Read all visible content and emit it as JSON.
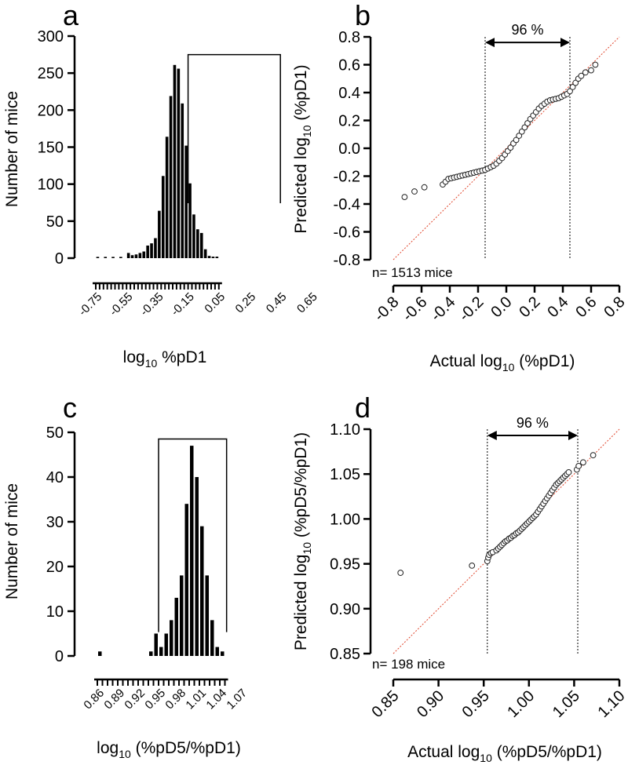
{
  "figure": {
    "colors": {
      "axis": "#000000",
      "bar": "#000000",
      "identity_line": "#e0442a",
      "point_stroke": "#222222",
      "point_fill": "#ffffff"
    }
  },
  "chart_data": [
    {
      "panel": "a",
      "type": "bar",
      "ylabel": "Number of mice",
      "xlabel_main": "log",
      "xlabel_sub": "10",
      "xlabel_rest": " %pD1",
      "ylim": [
        0,
        300
      ],
      "yticks": [
        0,
        50,
        100,
        150,
        200,
        250,
        300
      ],
      "xticks": [
        "-0.75",
        "-0.55",
        "-0.35",
        "-0.15",
        "0.05",
        "0.25",
        "0.45",
        "0.65"
      ],
      "bin_start": -0.75,
      "bin_width": 0.025,
      "values": [
        1,
        0,
        1,
        0,
        1,
        0,
        1,
        0,
        7,
        4,
        5,
        7,
        9,
        17,
        20,
        27,
        64,
        111,
        164,
        219,
        261,
        256,
        209,
        152,
        101,
        59,
        39,
        34,
        12,
        3,
        2,
        2
      ],
      "bracket": {
        "from": -0.15,
        "to": 0.45,
        "top": 275
      }
    },
    {
      "panel": "b",
      "type": "scatter",
      "ylabel_main": "Predicted log",
      "ylabel_sub": "10",
      "ylabel_rest": " (%pD1)",
      "xlabel_main": "Actual log",
      "xlabel_sub": "10",
      "xlabel_rest": " (%pD1)",
      "xlim": [
        -0.8,
        0.8
      ],
      "ylim": [
        -0.8,
        0.8
      ],
      "xticks": [
        "-0.8",
        "-0.6",
        "-0.4",
        "-0.2",
        "0.0",
        "0.2",
        "0.4",
        "0.6",
        "0.8"
      ],
      "yticks": [
        "-0.8",
        "-0.6",
        "-0.4",
        "-0.2",
        "0.0",
        "0.2",
        "0.4",
        "0.6",
        "0.8"
      ],
      "tick_step": 0.2,
      "tick_digits": 1,
      "n_label": "n= 1513 mice",
      "interval_label": "96 %",
      "interval": [
        -0.15,
        0.45
      ],
      "interval_arrow_y": 0.76,
      "points": [
        [
          -0.72,
          -0.35
        ],
        [
          -0.65,
          -0.31
        ],
        [
          -0.58,
          -0.28
        ],
        [
          -0.45,
          -0.26
        ],
        [
          -0.43,
          -0.24
        ],
        [
          -0.41,
          -0.22
        ],
        [
          -0.39,
          -0.215
        ],
        [
          -0.37,
          -0.21
        ],
        [
          -0.35,
          -0.205
        ],
        [
          -0.33,
          -0.2
        ],
        [
          -0.31,
          -0.195
        ],
        [
          -0.29,
          -0.19
        ],
        [
          -0.27,
          -0.185
        ],
        [
          -0.25,
          -0.18
        ],
        [
          -0.23,
          -0.175
        ],
        [
          -0.21,
          -0.17
        ],
        [
          -0.19,
          -0.165
        ],
        [
          -0.17,
          -0.16
        ],
        [
          -0.15,
          -0.155
        ],
        [
          -0.13,
          -0.145
        ],
        [
          -0.11,
          -0.135
        ],
        [
          -0.09,
          -0.125
        ],
        [
          -0.07,
          -0.11
        ],
        [
          -0.05,
          -0.09
        ],
        [
          -0.03,
          -0.07
        ],
        [
          -0.01,
          -0.045
        ],
        [
          0.01,
          -0.02
        ],
        [
          0.03,
          0.005
        ],
        [
          0.05,
          0.035
        ],
        [
          0.07,
          0.06
        ],
        [
          0.09,
          0.09
        ],
        [
          0.11,
          0.12
        ],
        [
          0.13,
          0.15
        ],
        [
          0.15,
          0.18
        ],
        [
          0.17,
          0.21
        ],
        [
          0.19,
          0.235
        ],
        [
          0.21,
          0.26
        ],
        [
          0.23,
          0.285
        ],
        [
          0.25,
          0.305
        ],
        [
          0.27,
          0.32
        ],
        [
          0.29,
          0.335
        ],
        [
          0.31,
          0.345
        ],
        [
          0.33,
          0.35
        ],
        [
          0.35,
          0.355
        ],
        [
          0.37,
          0.36
        ],
        [
          0.39,
          0.37
        ],
        [
          0.41,
          0.38
        ],
        [
          0.43,
          0.39
        ],
        [
          0.45,
          0.41
        ],
        [
          0.47,
          0.44
        ],
        [
          0.49,
          0.47
        ],
        [
          0.51,
          0.5
        ],
        [
          0.53,
          0.52
        ],
        [
          0.56,
          0.545
        ],
        [
          0.6,
          0.56
        ],
        [
          0.63,
          0.6
        ]
      ]
    },
    {
      "panel": "c",
      "type": "bar",
      "ylabel": "Number of mice",
      "xlabel_main": "log",
      "xlabel_sub": "10",
      "xlabel_rest": " (%pD5/%pD1)",
      "ylim": [
        0,
        50
      ],
      "yticks": [
        0,
        10,
        20,
        30,
        40,
        50
      ],
      "xticks": [
        "0.86",
        "0.89",
        "0.92",
        "0.95",
        "0.98",
        "1.01",
        "1.04",
        "1.07"
      ],
      "bin_start": 0.86,
      "bin_width": 0.0075,
      "values": [
        1,
        0,
        0,
        0,
        0,
        0,
        0,
        0,
        0,
        0,
        1,
        5,
        2,
        5,
        8,
        13,
        18,
        34,
        47,
        40,
        29,
        18,
        8,
        2,
        1
      ],
      "bracket": {
        "from": 0.95,
        "to": 1.05,
        "top": 48.5
      }
    },
    {
      "panel": "d",
      "type": "scatter",
      "ylabel_main": "Predicted log",
      "ylabel_sub": "10",
      "ylabel_rest": " (%pD5/%pD1)",
      "xlabel_main": "Actual log",
      "xlabel_sub": "10",
      "xlabel_rest": " (%pD5/%pD1)",
      "xlim": [
        0.85,
        1.1
      ],
      "ylim": [
        0.85,
        1.1
      ],
      "xticks": [
        "0.85",
        "0.90",
        "0.95",
        "1.00",
        "1.05",
        "1.10"
      ],
      "yticks": [
        "0.85",
        "0.90",
        "0.95",
        "1.00",
        "1.05",
        "1.10"
      ],
      "tick_step": 0.05,
      "tick_digits": 2,
      "n_label": "n= 198 mice",
      "interval_label": "96 %",
      "interval": [
        0.954,
        1.054
      ],
      "interval_arrow_y": 1.093,
      "points": [
        [
          0.858,
          0.94
        ],
        [
          0.937,
          0.948
        ],
        [
          0.954,
          0.953
        ],
        [
          0.955,
          0.957
        ],
        [
          0.956,
          0.96
        ],
        [
          0.958,
          0.962
        ],
        [
          0.96,
          0.963
        ],
        [
          0.964,
          0.965
        ],
        [
          0.966,
          0.967
        ],
        [
          0.968,
          0.969
        ],
        [
          0.97,
          0.971
        ],
        [
          0.972,
          0.973
        ],
        [
          0.974,
          0.975
        ],
        [
          0.976,
          0.976
        ],
        [
          0.978,
          0.978
        ],
        [
          0.98,
          0.979
        ],
        [
          0.982,
          0.981
        ],
        [
          0.984,
          0.982
        ],
        [
          0.986,
          0.984
        ],
        [
          0.988,
          0.985
        ],
        [
          0.99,
          0.987
        ],
        [
          0.992,
          0.989
        ],
        [
          0.994,
          0.991
        ],
        [
          0.996,
          0.993
        ],
        [
          0.998,
          0.995
        ],
        [
          1.0,
          0.997
        ],
        [
          1.002,
          0.999
        ],
        [
          1.004,
          1.001
        ],
        [
          1.006,
          1.003
        ],
        [
          1.008,
          1.005
        ],
        [
          1.01,
          1.008
        ],
        [
          1.012,
          1.011
        ],
        [
          1.014,
          1.014
        ],
        [
          1.016,
          1.017
        ],
        [
          1.018,
          1.02
        ],
        [
          1.02,
          1.023
        ],
        [
          1.022,
          1.026
        ],
        [
          1.024,
          1.029
        ],
        [
          1.026,
          1.032
        ],
        [
          1.028,
          1.035
        ],
        [
          1.03,
          1.038
        ],
        [
          1.032,
          1.04
        ],
        [
          1.034,
          1.042
        ],
        [
          1.036,
          1.044
        ],
        [
          1.038,
          1.046
        ],
        [
          1.04,
          1.048
        ],
        [
          1.042,
          1.05
        ],
        [
          1.044,
          1.052
        ],
        [
          1.053,
          1.055
        ],
        [
          1.055,
          1.059
        ],
        [
          1.06,
          1.063
        ],
        [
          1.071,
          1.071
        ]
      ]
    }
  ]
}
